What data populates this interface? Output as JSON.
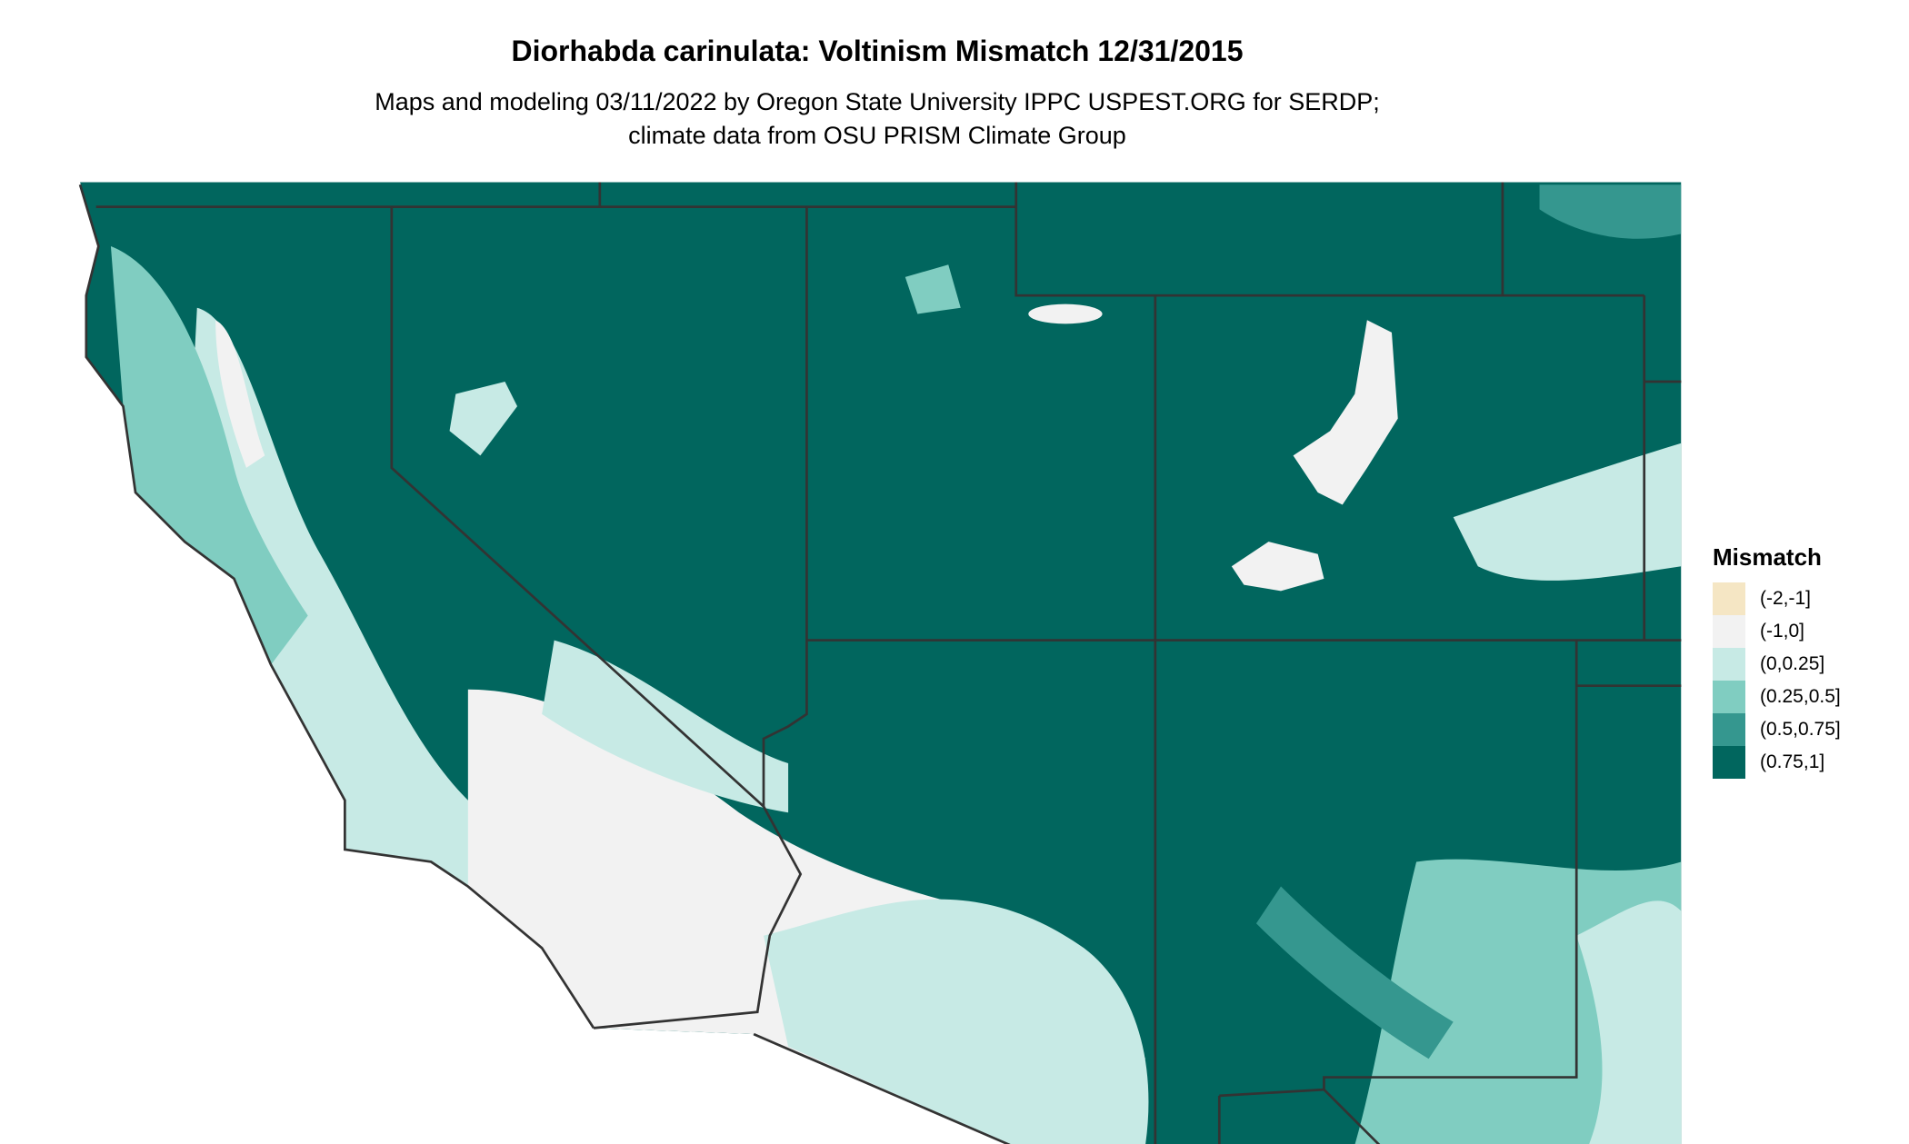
{
  "title": "Diorhabda carinulata: Voltinism Mismatch 12/31/2015",
  "subtitle": "Maps and modeling 03/11/2022 by Oregon State University IPPC USPEST.ORG for SERDP; climate data from OSU PRISM Climate Group",
  "legend": {
    "title": "Mismatch",
    "items": [
      {
        "label": "(-2,-1]",
        "color": "#f5e6c4"
      },
      {
        "label": "(-1,0]",
        "color": "#f2f2f2"
      },
      {
        "label": "(0,0.25]",
        "color": "#c7eae5"
      },
      {
        "label": "(0.25,0.5]",
        "color": "#80cdc1"
      },
      {
        "label": "(0.5,0.75]",
        "color": "#35978f"
      },
      {
        "label": "(0.75,1]",
        "color": "#01665e"
      }
    ]
  },
  "map": {
    "region": "Western United States",
    "dominant_class": "(0.75,1]",
    "border_color": "#333333"
  }
}
